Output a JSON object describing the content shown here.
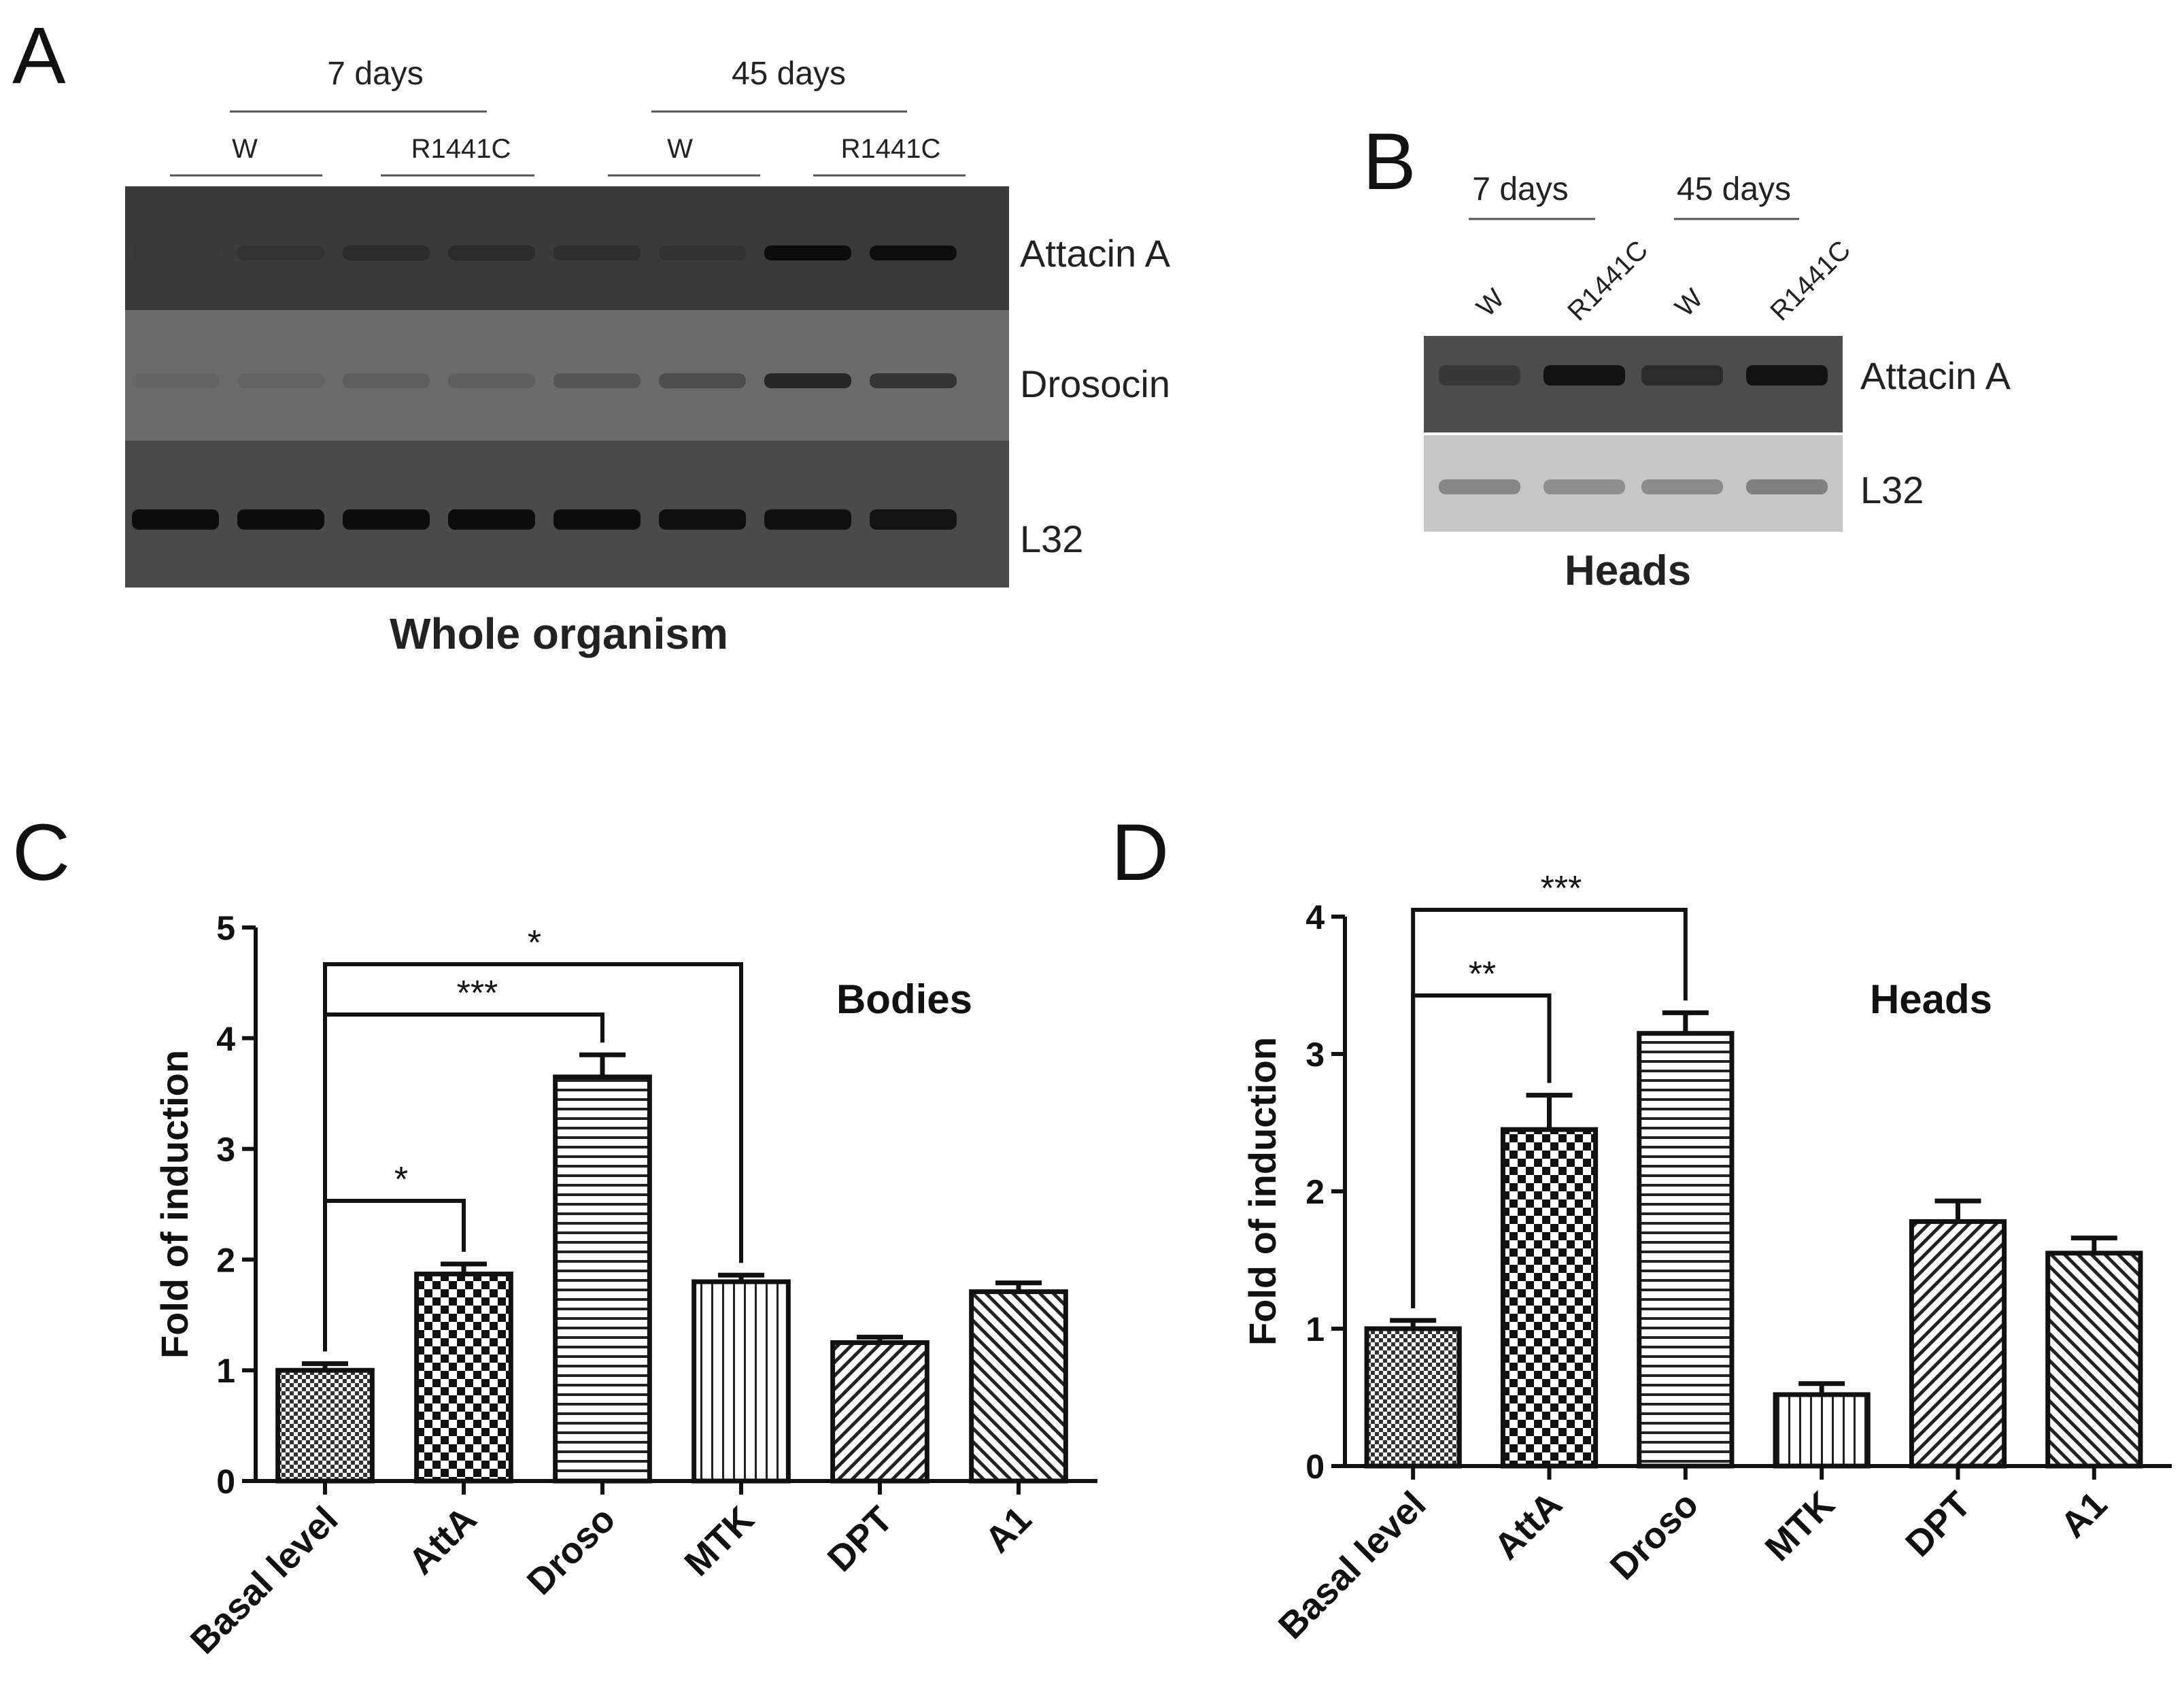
{
  "panels": {
    "a": {
      "letter": "A",
      "groups": [
        "7 days",
        "45 days"
      ],
      "lanes": [
        "W",
        "R1441C",
        "W",
        "R1441C"
      ],
      "bands": [
        "Attacin A",
        "Drosocin",
        "L32"
      ],
      "caption": "Whole organism"
    },
    "b": {
      "letter": "B",
      "groups": [
        "7 days",
        "45 days"
      ],
      "lanes": [
        "W",
        "R1441C",
        "W",
        "R1441C"
      ],
      "bands": [
        "Attacin A",
        "L32"
      ],
      "caption": "Heads"
    },
    "c": {
      "letter": "C"
    },
    "d": {
      "letter": "D"
    }
  },
  "colors": {
    "bar_stroke": "#111111",
    "axis": "#111111",
    "gel_dark": "#2e2e2e",
    "gel_light": "#c8c8c8"
  },
  "chart_data": [
    {
      "type": "bar",
      "title": "Bodies",
      "ylabel": "Fold of induction",
      "categories": [
        "Basal level",
        "AttA",
        "Droso",
        "MTK",
        "DPT",
        "A1"
      ],
      "values": [
        1.0,
        1.87,
        3.65,
        1.8,
        1.25,
        1.71
      ],
      "errors": [
        0.06,
        0.09,
        0.2,
        0.06,
        0.05,
        0.08
      ],
      "ylim": [
        0,
        5
      ],
      "yticks": [
        "0",
        "1",
        "2",
        "3",
        "4",
        "5"
      ],
      "significance": [
        {
          "from": "Basal level",
          "to": "AttA",
          "label": "*"
        },
        {
          "from": "Basal level",
          "to": "Droso",
          "label": "***"
        },
        {
          "from": "Basal level",
          "to": "MTK",
          "label": "*"
        }
      ],
      "patterns": [
        "fine-check",
        "checker",
        "horizontal",
        "vertical",
        "diag-right",
        "diag-left"
      ]
    },
    {
      "type": "bar",
      "title": "Heads",
      "ylabel": "Fold of induction",
      "categories": [
        "Basal level",
        "AttA",
        "Droso",
        "MTK",
        "DPT",
        "A1"
      ],
      "values": [
        1.0,
        2.45,
        3.15,
        0.52,
        1.78,
        1.55
      ],
      "errors": [
        0.06,
        0.25,
        0.15,
        0.08,
        0.15,
        0.11
      ],
      "ylim": [
        0,
        4
      ],
      "yticks": [
        "0",
        "1",
        "2",
        "3",
        "4"
      ],
      "significance": [
        {
          "from": "Basal level",
          "to": "AttA",
          "label": "**"
        },
        {
          "from": "Basal level",
          "to": "Droso",
          "label": "***"
        }
      ],
      "patterns": [
        "fine-check",
        "checker",
        "horizontal",
        "vertical",
        "diag-right",
        "diag-left"
      ]
    }
  ]
}
